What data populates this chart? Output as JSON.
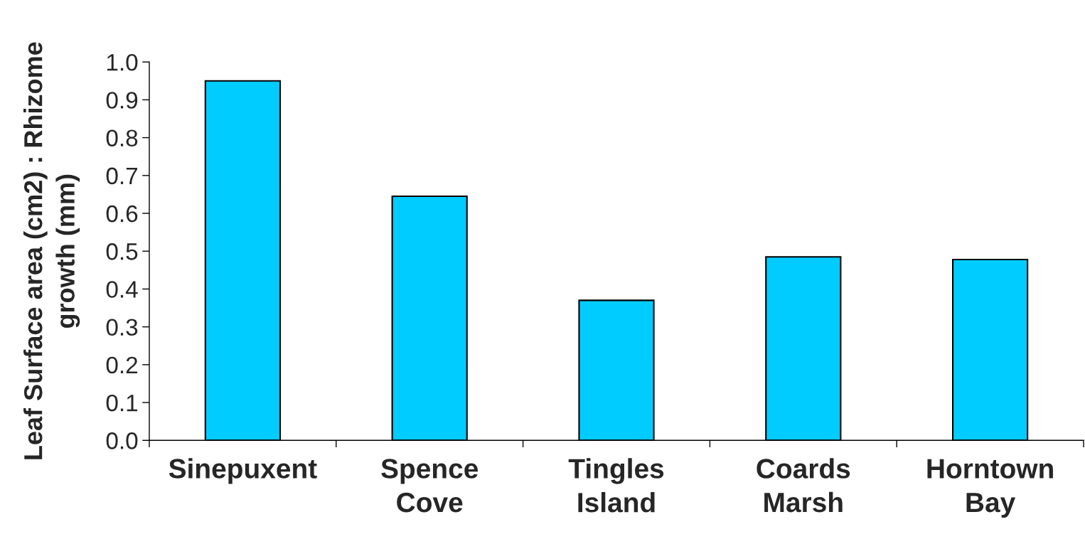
{
  "chart_data": {
    "type": "bar",
    "ylabel": "Leaf Surface area (cm2) : Rhizome\ngrowth (mm)",
    "categories": [
      "Sinepuxent",
      "Spence\nCove",
      "Tingles\nIsland",
      "Coards\nMarsh",
      "Horntown\nBay"
    ],
    "values": [
      0.95,
      0.645,
      0.37,
      0.485,
      0.478
    ],
    "color": "#00ccff",
    "ylim": [
      0,
      1.0
    ],
    "yticks": [
      {
        "value": 0,
        "label": "0.0"
      },
      0.1,
      0.2,
      0.3,
      0.4,
      0.5,
      0.6,
      0.7,
      0.8,
      0.9,
      {
        "value": 1,
        "label": "1.0"
      }
    ],
    "grid": false
  }
}
